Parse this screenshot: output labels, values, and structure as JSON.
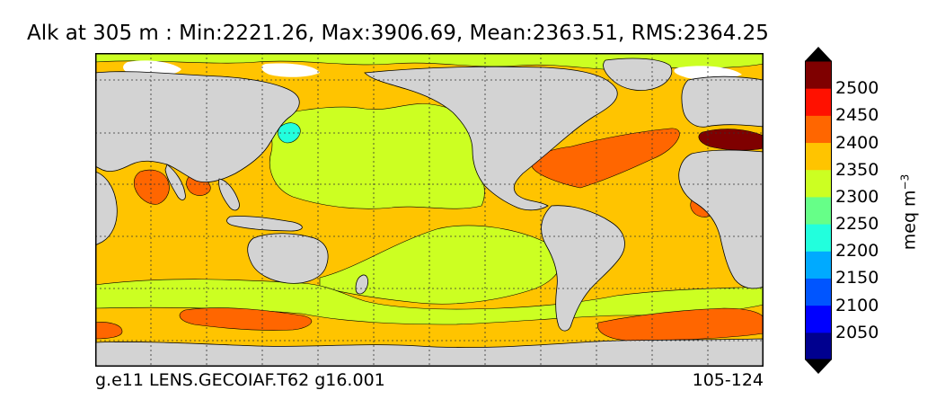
{
  "title": "Alk at 305 m : Min:2221.26, Max:3906.69, Mean:2363.51, RMS:2364.25",
  "footer": {
    "left": "g.e11 LENS.GECOIAF.T62 g16.001",
    "right": "105-124"
  },
  "colorbar": {
    "units_text": "meq m",
    "units_exp": "−3",
    "extend": "both",
    "levels": [
      {
        "label": "2050",
        "color": "#0000ff"
      },
      {
        "label": "2100",
        "color": "#0055ff"
      },
      {
        "label": "2150",
        "color": "#00aaff"
      },
      {
        "label": "2200",
        "color": "#22ffdd"
      },
      {
        "label": "2250",
        "color": "#66ff88"
      },
      {
        "label": "2300",
        "color": "#ccff22"
      },
      {
        "label": "2350",
        "color": "#ffc400"
      },
      {
        "label": "2400",
        "color": "#ff6600"
      },
      {
        "label": "2450",
        "color": "#ff1100"
      },
      {
        "label": "2500",
        "color": "#7f0000"
      }
    ],
    "under_color": "#00007f",
    "over_color": "#7f0000",
    "first_bin_color": "#00008f"
  },
  "map": {
    "land_color": "#d3d3d3",
    "missing_color": "#ffffff",
    "gridlines": "dotted",
    "regions": [
      {
        "name": "arctic-ocean",
        "color": "#ccff22"
      },
      {
        "name": "north-pacific",
        "color": "#ccff22"
      },
      {
        "name": "north-atlantic",
        "color": "#ffc400"
      },
      {
        "name": "gulf-stream-band",
        "color": "#ff6600"
      },
      {
        "name": "mediterranean",
        "color": "#7f0000"
      },
      {
        "name": "south-pacific-gyre",
        "color": "#ccff22"
      },
      {
        "name": "southern-ocean-band",
        "color": "#ccff22"
      },
      {
        "name": "antarctic-circumpolar",
        "color": "#ff6600"
      },
      {
        "name": "sea-of-japan",
        "color": "#22ffdd"
      }
    ]
  }
}
